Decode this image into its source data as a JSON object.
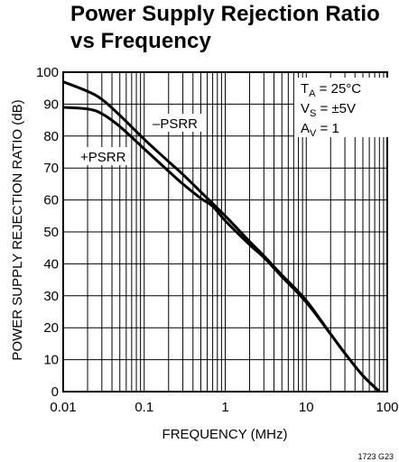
{
  "chart_data": {
    "type": "line",
    "title": [
      "Power Supply Rejection Ratio",
      "vs Frequency"
    ],
    "xlabel": "FREQUENCY (MHz)",
    "ylabel": "POWER SUPPLY REJECTION RATIO (dB)",
    "x_scale": "log",
    "xlim": [
      0.01,
      100
    ],
    "ylim": [
      0,
      100
    ],
    "x_ticks": [
      "0.01",
      "0.1",
      "1",
      "10",
      "100"
    ],
    "y_ticks": [
      "0",
      "10",
      "20",
      "30",
      "40",
      "50",
      "60",
      "70",
      "80",
      "90",
      "100"
    ],
    "grid": true,
    "conditions": {
      "ta_main": "T",
      "ta_sub": "A",
      "ta_val": " = 25°C",
      "vs_main": "V",
      "vs_sub": "S",
      "vs_val": " = ±5V",
      "av_main": "A",
      "av_sub": "V",
      "av_val": " = 1"
    },
    "series": [
      {
        "name": "–PSRR",
        "x": [
          0.01,
          0.02,
          0.03,
          0.05,
          0.1,
          0.2,
          0.3,
          0.5,
          1,
          2,
          3,
          5,
          10,
          20,
          30,
          50,
          80
        ],
        "y": [
          97,
          94,
          91.5,
          86.5,
          79,
          72,
          68,
          62.5,
          55,
          47,
          42.5,
          36.5,
          28.5,
          18,
          12,
          5,
          0
        ]
      },
      {
        "name": "+PSRR",
        "x": [
          0.01,
          0.02,
          0.03,
          0.05,
          0.1,
          0.2,
          0.3,
          0.5,
          0.7,
          1,
          2,
          3,
          5,
          10,
          20,
          30,
          50,
          80
        ],
        "y": [
          89,
          88.5,
          87,
          83,
          76,
          69,
          65,
          60.5,
          58,
          53.5,
          46,
          42,
          36,
          28,
          18,
          12,
          5,
          0
        ]
      }
    ],
    "series_labels": [
      "–PSRR",
      "+PSRR"
    ],
    "figure_id": "1723 G23"
  }
}
